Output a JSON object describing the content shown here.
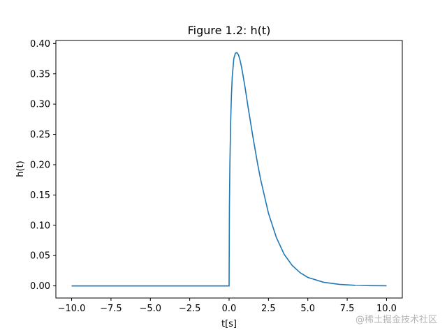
{
  "chart_data": {
    "type": "line",
    "title": "Figure 1.2: h(t)",
    "xlabel": "t[s]",
    "ylabel": "h(t)",
    "xlim": [
      -11.0,
      11.0
    ],
    "ylim": [
      -0.02,
      0.405
    ],
    "xticks": [
      -10.0,
      -7.5,
      -5.0,
      -2.5,
      0.0,
      2.5,
      5.0,
      7.5,
      10.0
    ],
    "xtick_labels": [
      "−10.0",
      "−7.5",
      "−5.0",
      "−2.5",
      "0.0",
      "2.5",
      "5.0",
      "7.5",
      "10.0"
    ],
    "yticks": [
      0.0,
      0.05,
      0.1,
      0.15,
      0.2,
      0.25,
      0.3,
      0.35,
      0.4
    ],
    "ytick_labels": [
      "0.00",
      "0.05",
      "0.10",
      "0.15",
      "0.20",
      "0.25",
      "0.30",
      "0.35",
      "0.40"
    ],
    "grid": false,
    "line_color": "#1f77b4",
    "series": [
      {
        "x": [
          -10.0,
          -7.5,
          -5.0,
          -2.5,
          0.0,
          0.02,
          0.05,
          0.1,
          0.15,
          0.2,
          0.3,
          0.4,
          0.5,
          0.6,
          0.7,
          0.8,
          1.0,
          1.2,
          1.5,
          1.8,
          2.0,
          2.5,
          3.0,
          3.5,
          4.0,
          4.5,
          5.0,
          6.0,
          7.0,
          8.0,
          9.0,
          10.0
        ],
        "y": [
          0.0,
          0.0,
          0.0,
          0.0,
          0.0,
          0.13,
          0.2,
          0.27,
          0.315,
          0.345,
          0.375,
          0.384,
          0.385,
          0.381,
          0.372,
          0.36,
          0.33,
          0.296,
          0.248,
          0.203,
          0.176,
          0.12,
          0.08,
          0.052,
          0.034,
          0.022,
          0.014,
          0.006,
          0.0025,
          0.001,
          0.0004,
          0.0002
        ]
      }
    ]
  },
  "watermark": "@稀土掘金技术社区"
}
